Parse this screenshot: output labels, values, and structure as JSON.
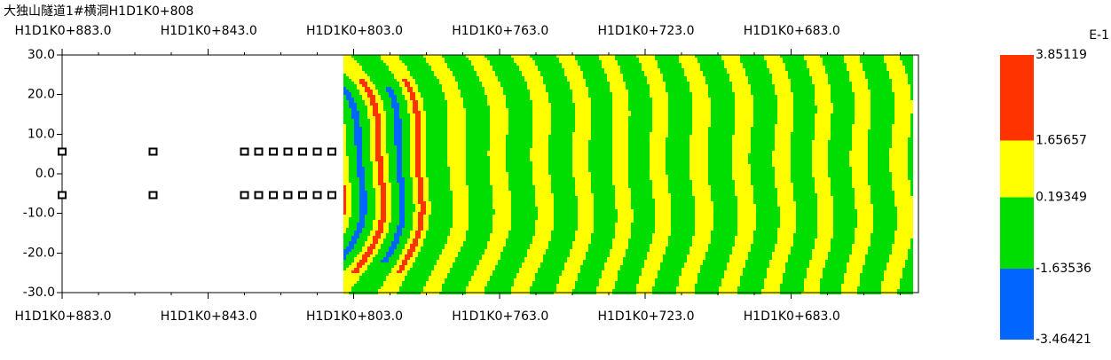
{
  "chart_data": {
    "type": "contour",
    "title": "大独山隧道1#横洞H1D1K0+808",
    "xlim": [
      883,
      648
    ],
    "xticks": [
      {
        "value": 883,
        "label": "H1D1K0+883.0"
      },
      {
        "value": 843,
        "label": "H1D1K0+843.0"
      },
      {
        "value": 803,
        "label": "H1D1K0+803.0"
      },
      {
        "value": 763,
        "label": "H1D1K0+763.0"
      },
      {
        "value": 723,
        "label": "H1D1K0+723.0"
      },
      {
        "value": 683,
        "label": "H1D1K0+683.0"
      }
    ],
    "ylim": [
      -30,
      30
    ],
    "yticks": [
      {
        "value": 30,
        "label": "30.0"
      },
      {
        "value": 20,
        "label": "20.0"
      },
      {
        "value": 10,
        "label": "10.0"
      },
      {
        "value": 0,
        "label": "0.0"
      },
      {
        "value": -10,
        "label": "-10.0"
      },
      {
        "value": -20,
        "label": "-20.0"
      },
      {
        "value": -30,
        "label": "-30.0"
      }
    ],
    "x": [
      883,
      858,
      833,
      829,
      825,
      821,
      817,
      813,
      809,
      883,
      858,
      833,
      829,
      825,
      821,
      817,
      813,
      809
    ],
    "values": [
      5.5,
      5.5,
      5.5,
      5.5,
      5.5,
      5.5,
      5.5,
      5.5,
      5.5,
      -5.5,
      -5.5,
      -5.5,
      -5.5,
      -5.5,
      -5.5,
      -5.5,
      -5.5,
      -5.5
    ],
    "colorbar": {
      "unit": "E-1",
      "levels": [
        3.85119,
        1.65657,
        0.19349,
        -1.63536,
        -3.46421
      ],
      "colors": [
        "#ff3300",
        "#ffff00",
        "#00dd00",
        "#0066ff"
      ]
    }
  }
}
